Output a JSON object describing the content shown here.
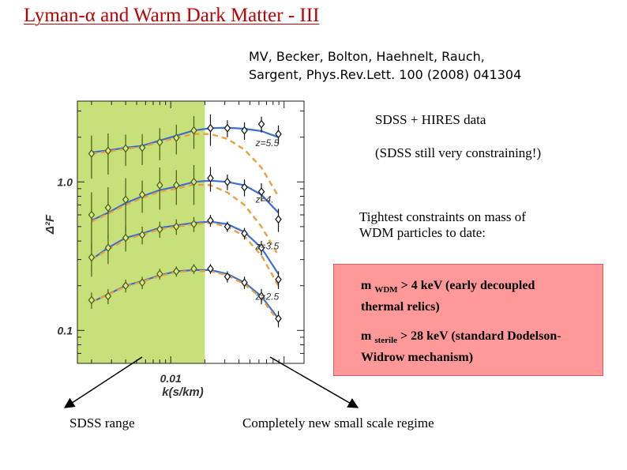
{
  "slide": {
    "title_prefix": "Lyman-",
    "title_alpha": "α",
    "title_suffix": " and Warm Dark Matter - III",
    "citation_line1": "MV, Becker, Bolton, Haehnelt, Rauch,",
    "citation_line2": "Sargent, Phys.Rev.Lett. 100 (2008) 041304",
    "data_note": "SDSS + HIRES data",
    "constraining_note": "(SDSS still very constraining!)",
    "tightest_line1": "Tightest constraints on mass of",
    "tightest_line2": "WDM particles to date:",
    "sdss_range_label": "SDSS range",
    "new_regime_label": "Completely new small scale regime",
    "colors": {
      "title": "#c00000",
      "sdss_band": "#c8e07a",
      "box": "#ff9999",
      "fit_line": "#3a6fd0",
      "wdm_line": "#e8a040"
    }
  },
  "constraints": [
    {
      "prefix": "m ",
      "sub": "WDM",
      "rest": " > 4 keV (early decoupled",
      "line2": "thermal relics)"
    },
    {
      "prefix": "m ",
      "sub": "sterile",
      "rest": " > 28 keV (standard Dodelson-",
      "line2": "Widrow mechanism)"
    }
  ],
  "chart_data": {
    "type": "scatter",
    "xlabel": "k(s/km)",
    "ylabel": "Δ²F",
    "x_tick_labels": [
      "0.01"
    ],
    "y_tick_labels": [
      "1.0",
      "0.1"
    ],
    "xscale": "log",
    "yscale": "log",
    "xlim": [
      0.0015,
      0.15
    ],
    "ylim": [
      0.06,
      3.5
    ],
    "sdss_band_x": [
      0.0015,
      0.02
    ],
    "x": [
      0.002,
      0.0028,
      0.004,
      0.0056,
      0.008,
      0.0112,
      0.016,
      0.0224,
      0.0316,
      0.0447,
      0.0631,
      0.0891
    ],
    "series": [
      {
        "name": "z=5.5",
        "values": [
          1.55,
          1.62,
          1.68,
          1.7,
          1.85,
          1.98,
          2.22,
          2.3,
          2.3,
          2.22,
          2.45,
          2.1
        ],
        "err": [
          0.5,
          0.5,
          0.4,
          0.4,
          0.45,
          0.45,
          0.55,
          0.55,
          0.3,
          0.3,
          0.3,
          0.3
        ],
        "fit": [
          1.58,
          1.63,
          1.7,
          1.75,
          1.9,
          2.05,
          2.22,
          2.3,
          2.32,
          2.28,
          2.2,
          2.0
        ],
        "wdm": [
          1.55,
          1.6,
          1.67,
          1.72,
          1.86,
          1.98,
          2.1,
          2.1,
          1.95,
          1.65,
          1.25,
          0.8
        ]
      },
      {
        "name": "z=4.",
        "values": [
          0.6,
          0.67,
          0.76,
          0.82,
          0.95,
          0.95,
          1.0,
          1.06,
          1.0,
          0.92,
          0.86,
          0.56
        ],
        "err": [
          0.25,
          0.25,
          0.3,
          0.2,
          0.3,
          0.25,
          0.3,
          0.2,
          0.12,
          0.12,
          0.12,
          0.1
        ],
        "fit": [
          0.55,
          0.62,
          0.72,
          0.8,
          0.88,
          0.93,
          1.0,
          1.02,
          1.0,
          0.95,
          0.82,
          0.62
        ],
        "wdm": [
          0.54,
          0.61,
          0.7,
          0.78,
          0.86,
          0.9,
          0.96,
          0.95,
          0.85,
          0.7,
          0.5,
          0.32
        ]
      },
      {
        "name": "z=3.5",
        "values": [
          0.31,
          0.36,
          0.42,
          0.44,
          0.48,
          0.5,
          0.52,
          0.55,
          0.5,
          0.45,
          0.36,
          0.22
        ],
        "err": [
          0.08,
          0.08,
          0.08,
          0.06,
          0.06,
          0.06,
          0.06,
          0.05,
          0.04,
          0.04,
          0.04,
          0.03
        ],
        "fit": [
          0.3,
          0.36,
          0.42,
          0.45,
          0.49,
          0.51,
          0.53,
          0.54,
          0.52,
          0.46,
          0.36,
          0.24
        ],
        "wdm": [
          0.3,
          0.35,
          0.41,
          0.44,
          0.48,
          0.5,
          0.52,
          0.53,
          0.5,
          0.43,
          0.32,
          0.2
        ]
      },
      {
        "name": "z=2.5",
        "values": [
          0.16,
          0.17,
          0.2,
          0.21,
          0.24,
          0.25,
          0.26,
          0.26,
          0.23,
          0.21,
          0.17,
          0.12
        ],
        "err": [
          0.02,
          0.02,
          0.02,
          0.02,
          0.02,
          0.02,
          0.02,
          0.02,
          0.02,
          0.02,
          0.02,
          0.015
        ],
        "fit": [
          0.155,
          0.175,
          0.2,
          0.215,
          0.235,
          0.25,
          0.255,
          0.255,
          0.24,
          0.21,
          0.17,
          0.12
        ],
        "wdm": [
          0.155,
          0.174,
          0.198,
          0.213,
          0.232,
          0.247,
          0.252,
          0.25,
          0.235,
          0.205,
          0.165,
          0.115
        ]
      }
    ]
  }
}
